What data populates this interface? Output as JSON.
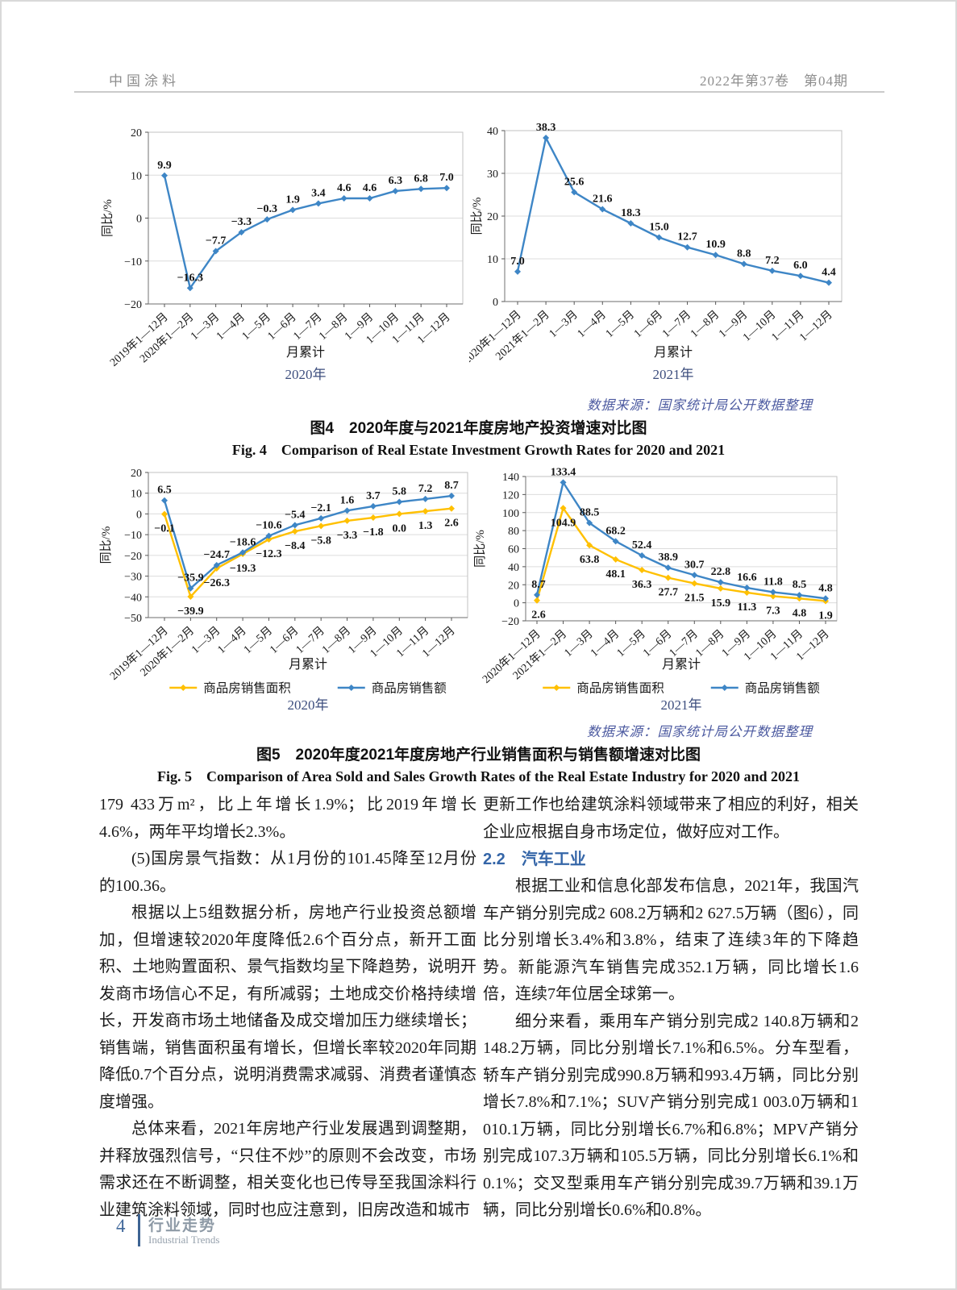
{
  "header": {
    "journal": "中国涂料",
    "issue": "2022年第37卷　第04期"
  },
  "figure4": {
    "datasource": "数据来源：国家统计局公开数据整理",
    "caption_zh": "图4　2020年度与2021年度房地产投资增速对比图",
    "caption_en": "Fig. 4　Comparison of Real Estate Investment Growth Rates for 2020 and 2021"
  },
  "figure5": {
    "datasource": "数据来源：国家统计局公开数据整理",
    "caption_zh": "图5　2020年度2021年度房地产行业销售面积与销售额增速对比图",
    "caption_en": "Fig. 5　Comparison of Area Sold and Sales Growth Rates of the Real Estate Industry for 2020 and 2021"
  },
  "chart_data": [
    {
      "id": "real-estate-investment-growth-2020",
      "type": "line",
      "ylabel": "同比/%",
      "xlabel": "月累计",
      "year_label": "2020年",
      "ylim": [
        -20,
        20
      ],
      "yticks": [
        20,
        10,
        0,
        -10,
        -20
      ],
      "grid": true,
      "legend": false,
      "categories": [
        "2019年1—12月",
        "2020年1—2月",
        "1—3月",
        "1—4月",
        "1—5月",
        "1—6月",
        "1—7月",
        "1—8月",
        "1—9月",
        "1—10月",
        "1—11月",
        "1—12月"
      ],
      "series": [
        {
          "name": "房地产投资增速",
          "color": "#3E86C6",
          "label_pos": "above",
          "values": [
            9.9,
            -16.3,
            -7.7,
            -3.3,
            -0.3,
            1.9,
            3.4,
            4.6,
            4.6,
            6.3,
            6.8,
            7.0
          ]
        }
      ]
    },
    {
      "id": "real-estate-investment-growth-2021",
      "type": "line",
      "ylabel": "同比/%",
      "xlabel": "月累计",
      "year_label": "2021年",
      "ylim": [
        0,
        40
      ],
      "yticks": [
        40,
        30,
        20,
        10,
        0
      ],
      "grid": true,
      "legend": false,
      "categories": [
        "2020年1—12月",
        "2021年1—2月",
        "1—3月",
        "1—4月",
        "1—5月",
        "1—6月",
        "1—7月",
        "1—8月",
        "1—9月",
        "1—10月",
        "1—11月",
        "1—12月"
      ],
      "series": [
        {
          "name": "房地产投资增速",
          "color": "#3E86C6",
          "label_pos": "above",
          "values": [
            7.0,
            38.3,
            25.6,
            21.6,
            18.3,
            15.0,
            12.7,
            10.9,
            8.8,
            7.2,
            6.0,
            4.4
          ]
        }
      ]
    },
    {
      "id": "commodity-housing-sales-growth-2020",
      "type": "line",
      "ylabel": "同比/%",
      "xlabel": "月累计",
      "year_label": "2020年",
      "ylim": [
        -50,
        20
      ],
      "yticks": [
        20,
        10,
        0,
        -10,
        -20,
        -30,
        -40,
        -50
      ],
      "grid": true,
      "legend": true,
      "categories": [
        "2019年1—12月",
        "2020年1—2月",
        "1—3月",
        "1—4月",
        "1—5月",
        "1—6月",
        "1—7月",
        "1—8月",
        "1—9月",
        "1—10月",
        "1—11月",
        "1—12月"
      ],
      "series": [
        {
          "name": "商品房销售面积",
          "color": "#FFC000",
          "label_pos": "below",
          "values": [
            -0.1,
            -39.9,
            -26.3,
            -19.3,
            -12.3,
            -8.4,
            -5.8,
            -3.3,
            -1.8,
            0.0,
            1.3,
            2.6
          ]
        },
        {
          "name": "商品房销售额",
          "color": "#3E86C6",
          "label_pos": "above",
          "values": [
            6.5,
            -35.9,
            -24.7,
            -18.6,
            -10.6,
            -5.4,
            -2.1,
            1.6,
            3.7,
            5.8,
            7.2,
            8.7
          ]
        }
      ]
    },
    {
      "id": "commodity-housing-sales-growth-2021",
      "type": "line",
      "ylabel": "同比/%",
      "xlabel": "月累计",
      "year_label": "2021年",
      "ylim": [
        -20,
        140
      ],
      "yticks": [
        140,
        120,
        100,
        80,
        60,
        40,
        20,
        0,
        -20
      ],
      "grid": true,
      "legend": true,
      "categories": [
        "2020年1—12月",
        "2021年1—2月",
        "1—3月",
        "1—4月",
        "1—5月",
        "1—6月",
        "1—7月",
        "1—8月",
        "1—9月",
        "1—10月",
        "1—11月",
        "1—12月"
      ],
      "series": [
        {
          "name": "商品房销售面积",
          "color": "#FFC000",
          "label_pos": "below",
          "values": [
            2.6,
            104.9,
            63.8,
            48.1,
            36.3,
            27.7,
            21.5,
            15.9,
            11.3,
            7.3,
            4.8,
            1.9
          ]
        },
        {
          "name": "商品房销售额",
          "color": "#3E86C6",
          "label_pos": "above",
          "values": [
            8.7,
            133.4,
            88.5,
            68.2,
            52.4,
            38.9,
            30.7,
            22.8,
            16.6,
            11.8,
            8.5,
            4.8
          ]
        }
      ]
    }
  ],
  "body": {
    "left": [
      {
        "text": "179 433万m²，比上年增长1.9%；比2019年增长4.6%，两年平均增长2.3%。"
      },
      {
        "text": "(5)国房景气指数：从1月份的101.45降至12月份的100.36。"
      },
      {
        "text": "根据以上5组数据分析，房地产行业投资总额增加，但增速较2020年度降低2.6个百分点，新开工面积、土地购置面积、景气指数均呈下降趋势，说明开发商市场信心不足，有所减弱；土地成交价格持续增长，开发商市场土地储备及成交增加压力继续增长；销售端，销售面积虽有增长，但增长率较2020年同期降低0.7个百分点，说明消费需求减弱、消费者谨慎态度增强。"
      },
      {
        "text": "总体来看，2021年房地产行业发展遇到调整期，并释放强烈信号，“只住不炒”的原则不会改变，市场需求还在不断调整，相关变化也已传导至我国涂料行业建筑涂料领域，同时也应注意到，旧房改造和城市"
      }
    ],
    "right_intro": "更新工作也给建筑涂料领域带来了相应的利好，相关企业应根据自身市场定位，做好应对工作。",
    "section_heading": "2.2　汽车工业",
    "right": [
      {
        "text": "根据工业和信息化部发布信息，2021年，我国汽车产销分别完成2 608.2万辆和2 627.5万辆（图6），同比分别增长3.4%和3.8%，结束了连续3年的下降趋势。新能源汽车销售完成352.1万辆，同比增长1.6倍，连续7年位居全球第一。"
      },
      {
        "text": "细分来看，乘用车产销分别完成2 140.8万辆和2 148.2万辆，同比分别增长7.1%和6.5%。分车型看，轿车产销分别完成990.8万辆和993.4万辆，同比分别增长7.8%和7.1%；SUV产销分别完成1 003.0万辆和1 010.1万辆，同比分别增长6.7%和6.8%；MPV产销分别完成107.3万辆和105.5万辆，同比分别增长6.1%和0.1%；交叉型乘用车产销分别完成39.7万辆和39.1万辆，同比分别增长0.6%和0.8%。"
      }
    ]
  },
  "footer": {
    "page_number": "4",
    "section_zh": "行业走势",
    "section_en": "Industrial Trends"
  },
  "colors": {
    "chart_blue": "#3E86C6",
    "chart_yellow": "#FFC000",
    "datasource_blue": "#4C5AA0",
    "year_label": "#3D4E7E",
    "heading_blue": "#3566A8",
    "footer_blue": "#41689A"
  }
}
